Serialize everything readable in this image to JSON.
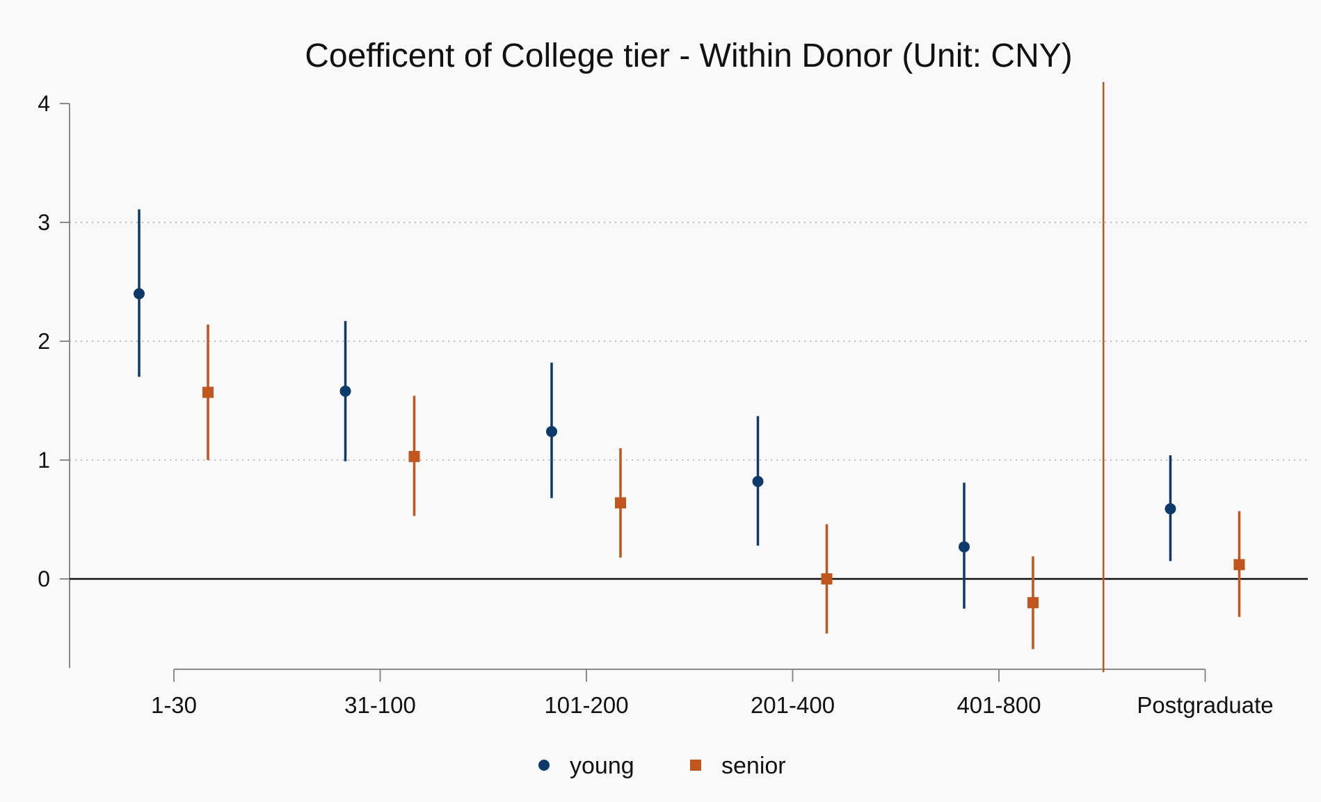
{
  "chart_data": {
    "type": "scatter",
    "subtype": "coefficient-plot-with-confidence-intervals",
    "title": "Coefficent of College tier - Within Donor (Unit: CNY)",
    "xlabel": "",
    "ylabel": "",
    "categories": [
      "1-30",
      "31-100",
      "101-200",
      "201-400",
      "401-800",
      "Postgraduate"
    ],
    "ylim": [
      -0.75,
      4.2
    ],
    "yticks": [
      0,
      1,
      2,
      3,
      4
    ],
    "grid": "horizontal-dotted",
    "zero_line": true,
    "reference_line_between_categories": [
      "401-800",
      "Postgraduate"
    ],
    "legend_position": "bottom",
    "series": [
      {
        "name": "young",
        "marker": "circle",
        "color": "#0e3a6b",
        "values": [
          2.4,
          1.58,
          1.24,
          0.82,
          0.27,
          0.59
        ],
        "ci_low": [
          1.7,
          0.99,
          0.68,
          0.28,
          -0.25,
          0.15
        ],
        "ci_high": [
          3.11,
          2.17,
          1.82,
          1.37,
          0.81,
          1.04
        ]
      },
      {
        "name": "senior",
        "marker": "square",
        "color": "#c0561e",
        "values": [
          1.57,
          1.03,
          0.64,
          0.0,
          -0.2,
          0.12
        ],
        "ci_low": [
          1.0,
          0.53,
          0.18,
          -0.46,
          -0.59,
          -0.32
        ],
        "ci_high": [
          2.14,
          1.54,
          1.1,
          0.46,
          0.19,
          0.57
        ]
      }
    ]
  }
}
